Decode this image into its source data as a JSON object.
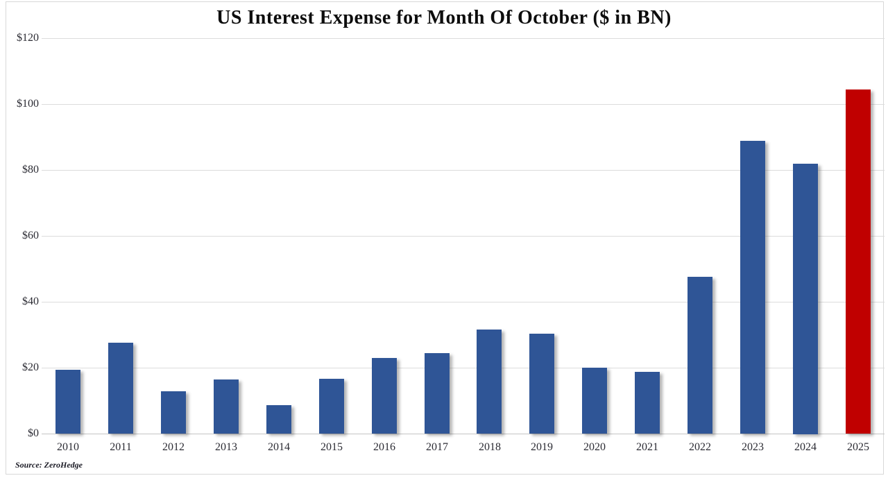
{
  "footer": {
    "source": "Source: ZeroHedge"
  },
  "chart_data": {
    "type": "bar",
    "title": "US Interest Expense for Month Of October ($ in BN)",
    "xlabel": "",
    "ylabel": "",
    "categories": [
      "2010",
      "2011",
      "2012",
      "2013",
      "2014",
      "2015",
      "2016",
      "2017",
      "2018",
      "2019",
      "2020",
      "2021",
      "2022",
      "2023",
      "2024",
      "2025"
    ],
    "values": [
      19.4,
      27.6,
      12.8,
      16.4,
      8.7,
      16.7,
      23.0,
      24.5,
      31.6,
      30.3,
      19.9,
      18.8,
      47.5,
      88.8,
      82.0,
      104.4
    ],
    "ylim": [
      0,
      120
    ],
    "y_tick_values": [
      0,
      20,
      40,
      60,
      80,
      100,
      120
    ],
    "y_tick_labels": [
      "$0",
      "$20",
      "$40",
      "$60",
      "$80",
      "$100",
      "$120"
    ],
    "grid": "horizontal",
    "legend": "none",
    "bar_color": "#2F5596",
    "highlight_color": "#C00000",
    "highlight_category": "2025"
  }
}
